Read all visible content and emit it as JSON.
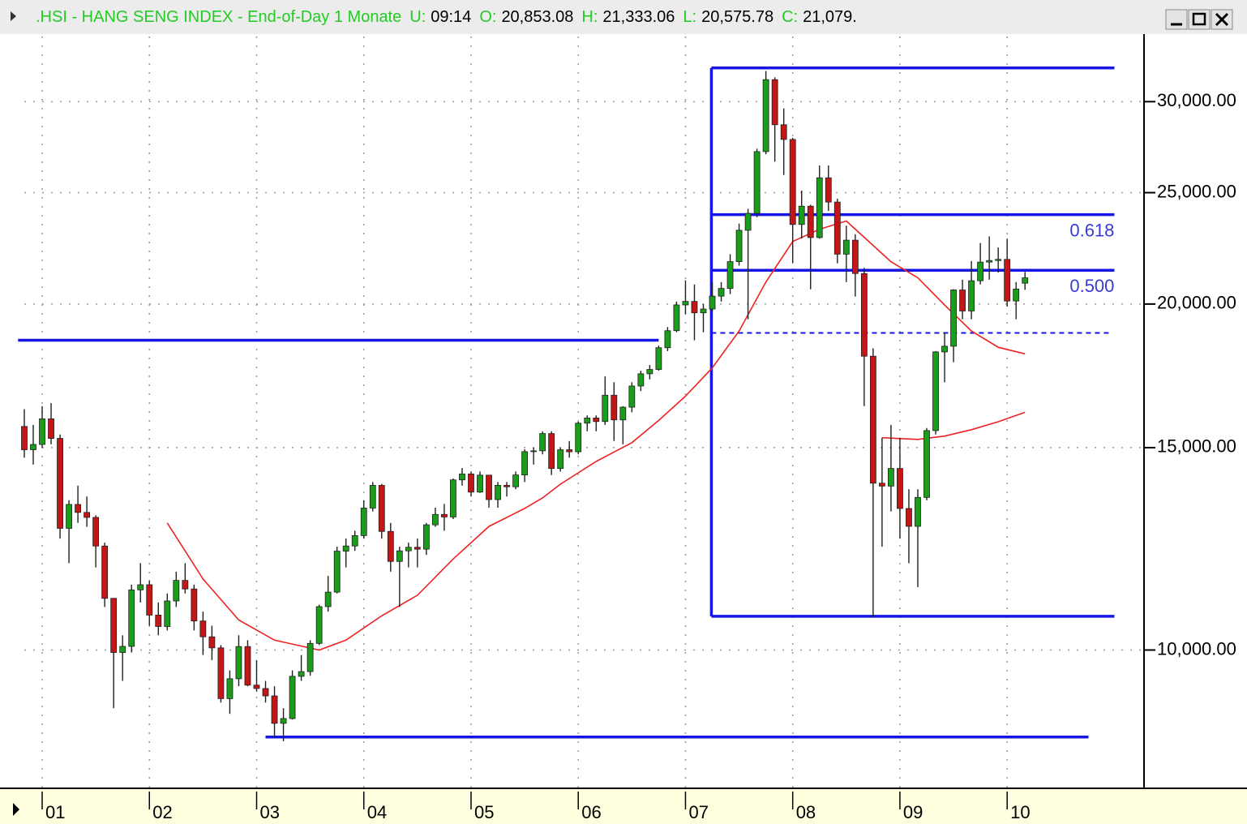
{
  "header": {
    "title": ".HSI - HANG SENG INDEX - End-of-Day 1 Monate",
    "fields": [
      {
        "label": "U:",
        "value": "09:14"
      },
      {
        "label": "O:",
        "value": "20,853.08"
      },
      {
        "label": "H:",
        "value": "21,333.06"
      },
      {
        "label": "L:",
        "value": "20,575.78"
      },
      {
        "label": "C:",
        "value": "21,079."
      }
    ]
  },
  "chart_data": {
    "type": "candlestick",
    "categories": [
      null,
      null,
      "01",
      null,
      null,
      null,
      null,
      null,
      null,
      null,
      null,
      null,
      null,
      null,
      "02",
      null,
      null,
      null,
      null,
      null,
      null,
      null,
      null,
      null,
      null,
      null,
      "03",
      null,
      null,
      null,
      null,
      null,
      null,
      null,
      null,
      null,
      null,
      null,
      "04",
      null,
      null,
      null,
      null,
      null,
      null,
      null,
      null,
      null,
      null,
      null,
      "05",
      null,
      null,
      null,
      null,
      null,
      null,
      null,
      null,
      null,
      null,
      null,
      "06",
      null,
      null,
      null,
      null,
      null,
      null,
      null,
      null,
      null,
      null,
      null,
      "07",
      null,
      null,
      null,
      null,
      null,
      null,
      null,
      null,
      null,
      null,
      null,
      "08",
      null,
      null,
      null,
      null,
      null,
      null,
      null,
      null,
      null,
      null,
      null,
      "09",
      null,
      null,
      null,
      null,
      null,
      null,
      null,
      null,
      null,
      null,
      null,
      "10",
      null,
      null
    ],
    "open": [
      15650,
      14937,
      15096,
      15891,
      15280,
      12761,
      13386,
      13174,
      13043,
      12316,
      11090,
      9951,
      10073,
      11280,
      11397,
      10725,
      10482,
      11033,
      11497,
      11301,
      10599,
      10268,
      10043,
      9072,
      9441,
      10070,
      9321,
      9258,
      9122,
      8634,
      8717,
      9487,
      9577,
      10134,
      10908,
      11230,
      12190,
      12317,
      12576,
      13289,
      13908,
      12682,
      11942,
      12198,
      12286,
      12239,
      12851,
      13121,
      13055,
      14061,
      14230,
      13722,
      14196,
      13517,
      13909,
      13868,
      14201,
      14880,
      14904,
      15429,
      14386,
      14937,
      14876,
      15753,
      15918,
      15805,
      16661,
      15857,
      16267,
      16971,
      17392,
      17543,
      18324,
      18960,
      19965,
      20106,
      19651,
      19801,
      20319,
      20635,
      21773,
      23185,
      23984,
      27143,
      31352,
      28643,
      27812,
      23456,
      24332,
      22849,
      25755,
      24533,
      22102,
      22731,
      21262,
      18016,
      13969,
      13888,
      14387,
      13278,
      12812,
      13576,
      15521,
      18171,
      18379,
      20573,
      19724,
      20955,
      21753,
      21822,
      21873,
      20122,
      20853
    ],
    "high": [
      16200,
      15700,
      16300,
      16400,
      15400,
      13500,
      13900,
      13600,
      13100,
      12400,
      11100,
      10300,
      11400,
      11900,
      11500,
      11000,
      11200,
      11700,
      11900,
      11400,
      10800,
      10500,
      10100,
      9600,
      10300,
      10200,
      9800,
      9400,
      9300,
      8900,
      9600,
      9900,
      10200,
      10950,
      11600,
      12300,
      12500,
      12700,
      13500,
      14000,
      13950,
      12900,
      12300,
      12400,
      12500,
      12900,
      13300,
      13400,
      14100,
      14400,
      14300,
      14300,
      14200,
      14000,
      14000,
      14300,
      14950,
      15000,
      15500,
      15500,
      15000,
      15200,
      15800,
      16000,
      16000,
      17300,
      17100,
      16300,
      17100,
      17500,
      17700,
      18400,
      19100,
      20100,
      20970,
      20800,
      20000,
      20900,
      20900,
      22100,
      23500,
      24200,
      27300,
      31900,
      31500,
      29600,
      27900,
      25100,
      24400,
      26400,
      26400,
      24700,
      23400,
      23000,
      21500,
      18300,
      15300,
      15700,
      15300,
      13800,
      13800,
      15600,
      18200,
      18900,
      20600,
      21000,
      21800,
      22600,
      22900,
      22400,
      22800,
      20900,
      21333
    ],
    "low": [
      14700,
      14500,
      15000,
      15100,
      12500,
      11900,
      12900,
      12800,
      11800,
      10900,
      8900,
      9400,
      9950,
      11000,
      10500,
      10300,
      10400,
      10900,
      11200,
      10400,
      9900,
      9800,
      9000,
      8800,
      9300,
      9300,
      9200,
      9000,
      8400,
      8330,
      8700,
      9400,
      9500,
      10100,
      10800,
      11200,
      11800,
      12200,
      12500,
      13200,
      12500,
      11700,
      10900,
      11800,
      11800,
      12100,
      12800,
      12700,
      13000,
      13900,
      13600,
      13700,
      13300,
      13300,
      13600,
      13800,
      14000,
      14500,
      14800,
      14200,
      14300,
      14700,
      14800,
      15500,
      15500,
      15700,
      15200,
      15100,
      16100,
      16800,
      17200,
      17500,
      18200,
      18900,
      19600,
      18600,
      18900,
      19700,
      20100,
      20400,
      21600,
      19400,
      23800,
      27000,
      26600,
      25900,
      21700,
      22800,
      20600,
      22800,
      24100,
      21700,
      20900,
      20300,
      16300,
      10676,
      12300,
      13200,
      12500,
      11900,
      11344,
      13500,
      15400,
      17100,
      17800,
      19400,
      19400,
      20800,
      21000,
      21300,
      19900,
      19400,
      20576
    ],
    "close": [
      14937,
      15096,
      15891,
      15280,
      12761,
      13386,
      13174,
      13043,
      12316,
      11090,
      9951,
      10073,
      11280,
      11397,
      10725,
      10482,
      11033,
      11497,
      11301,
      10599,
      10268,
      10043,
      9072,
      9441,
      10070,
      9321,
      9258,
      9122,
      8634,
      8717,
      9487,
      9577,
      10134,
      10908,
      11230,
      12190,
      12317,
      12576,
      13289,
      13908,
      12682,
      11942,
      12198,
      12286,
      12239,
      12851,
      13121,
      13055,
      14061,
      14230,
      13722,
      14196,
      13517,
      13909,
      13868,
      14201,
      14880,
      14904,
      15429,
      14386,
      14937,
      14876,
      15753,
      15918,
      15805,
      16661,
      15857,
      16267,
      16971,
      17392,
      17543,
      18324,
      18960,
      19965,
      20106,
      19651,
      19801,
      20319,
      20635,
      21773,
      23185,
      23984,
      27143,
      31352,
      28643,
      27812,
      23456,
      24332,
      22849,
      25755,
      24533,
      22102,
      22731,
      21262,
      18016,
      13969,
      13888,
      14387,
      13278,
      12812,
      13576,
      15521,
      18171,
      18379,
      20573,
      19724,
      20955,
      21753,
      21822,
      21873,
      20122,
      20609,
      21079
    ],
    "up_color": "#1a9e1a",
    "down_color": "#c41616",
    "wick_color": "#202020",
    "lines": [
      {
        "color": "#ee2222",
        "x": [
          16,
          20,
          24,
          28,
          31,
          33,
          36,
          40,
          44,
          48,
          52,
          56,
          58,
          60,
          64,
          68,
          71,
          74,
          77,
          80,
          83,
          86,
          89,
          92,
          94,
          97,
          100,
          103,
          106,
          109,
          112
        ],
        "values": [
          12900,
          11530,
          10620,
          10200,
          10080,
          10000,
          10200,
          10710,
          11160,
          12000,
          12810,
          13280,
          13560,
          13940,
          14590,
          15150,
          15840,
          16630,
          17600,
          18950,
          20900,
          22670,
          23230,
          23620,
          22860,
          21770,
          21080,
          19960,
          18950,
          18340,
          18100
        ]
      },
      {
        "color": "#ee2222",
        "x": [
          96,
          100,
          103,
          106,
          109,
          112
        ],
        "values": [
          15300,
          15250,
          15350,
          15550,
          15800,
          16100
        ]
      }
    ],
    "annotations": [
      {
        "type": "hline",
        "x": [
          -0.7,
          71
        ],
        "y": 18600,
        "color": "#1515e6"
      },
      {
        "type": "hline",
        "x": [
          27,
          119.1
        ],
        "y": 8400,
        "color": "#1515e6"
      },
      {
        "type": "fibonacci",
        "x": [
          76.9,
          122
        ],
        "low": 10700,
        "high": 32100,
        "color": "#1515e6",
        "levels": [
          {
            "ratio": 0.618,
            "label": "0.618"
          },
          {
            "ratio": 0.5,
            "label": "0.500"
          },
          {
            "ratio": 0.382,
            "dashed": true
          }
        ]
      }
    ],
    "xlim": [
      -2.72,
      125.32
    ],
    "ylim": [
      7580,
      34350
    ],
    "log_scale": true,
    "grid": true,
    "yticks": [
      {
        "value": 10000,
        "label": "10,000.00"
      },
      {
        "value": 15000,
        "label": "15,000.00"
      },
      {
        "value": 20000,
        "label": "20,000.00"
      },
      {
        "value": 25000,
        "label": "25,000.00"
      },
      {
        "value": 30000,
        "label": "30,000.00"
      }
    ]
  }
}
